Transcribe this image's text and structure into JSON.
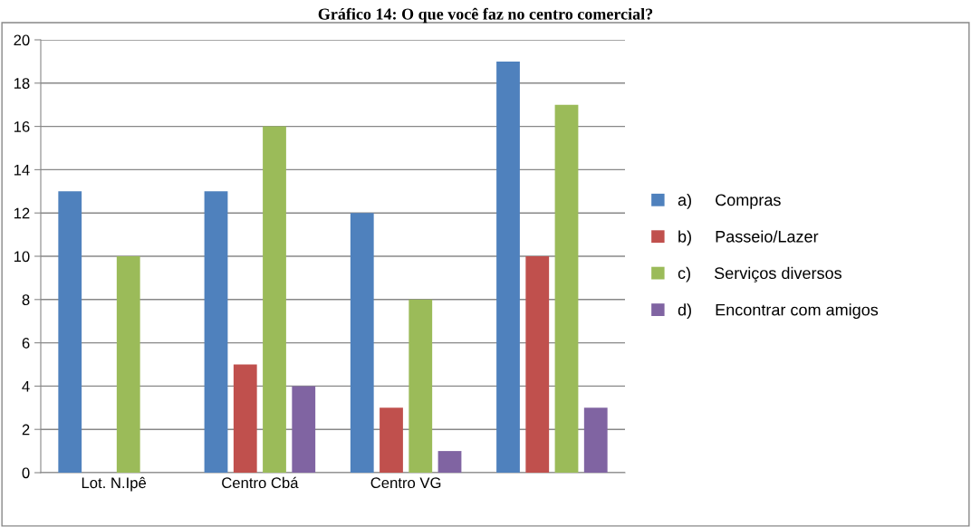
{
  "chart_data": {
    "type": "bar",
    "title": "Gráfico 14: O que você faz no centro comercial?",
    "categories": [
      "Lot. N.Ipê",
      "Centro Cbá",
      "Centro VG",
      null
    ],
    "series": [
      {
        "name": "a)     Compras",
        "color": "#4f81bd",
        "values": [
          13,
          13,
          12,
          19
        ]
      },
      {
        "name": "b)     Passeio/Lazer",
        "color": "#c0504d",
        "values": [
          null,
          5,
          3,
          10
        ]
      },
      {
        "name": "c)     Serviços diversos",
        "color": "#9bbb59",
        "values": [
          10,
          16,
          8,
          17
        ]
      },
      {
        "name": "d)     Encontrar com amigos",
        "color": "#8064a2",
        "values": [
          null,
          4,
          1,
          3
        ]
      }
    ],
    "ylim": [
      0,
      20
    ],
    "yticks": [
      0,
      2,
      4,
      6,
      8,
      10,
      12,
      14,
      16,
      18,
      20
    ],
    "grid": "y",
    "legend": "right"
  }
}
